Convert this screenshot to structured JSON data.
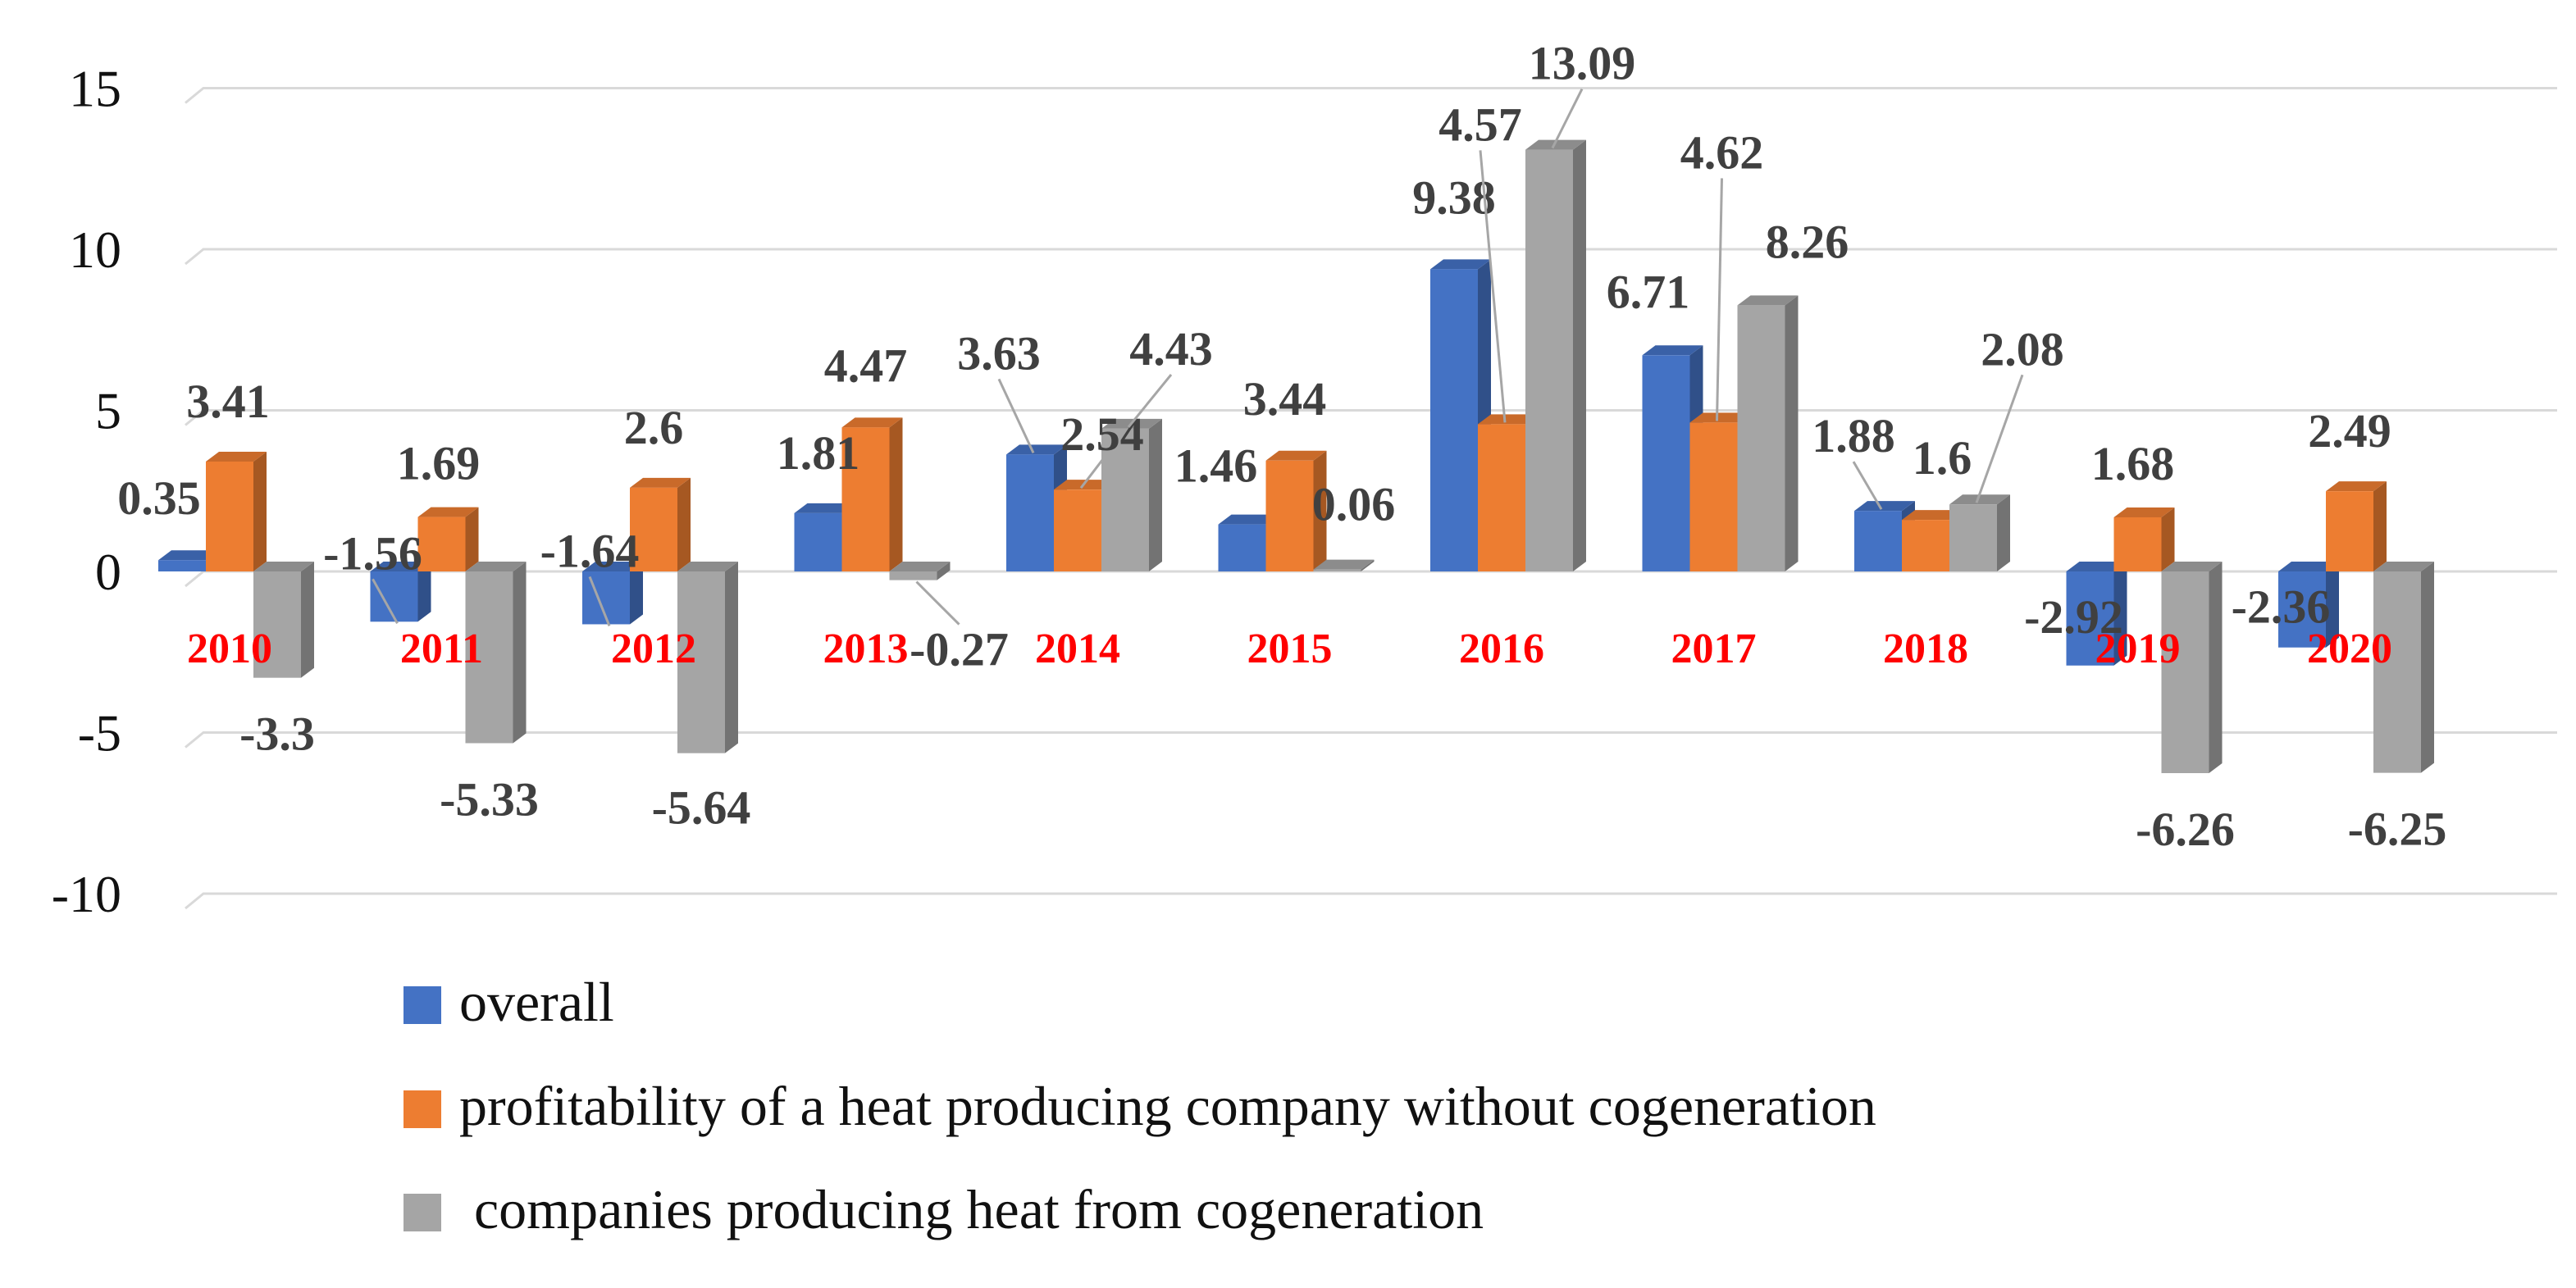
{
  "chart_data": {
    "type": "bar",
    "title": "",
    "xlabel": "",
    "ylabel": "",
    "ylim": [
      -10,
      15
    ],
    "yticks": [
      "15",
      "10",
      "5",
      "0",
      "-5",
      "-10"
    ],
    "grid": true,
    "legend_position": "bottom",
    "categories": [
      "2010",
      "2011",
      "2012",
      "2013",
      "2014",
      "2015",
      "2016",
      "2017",
      "2018",
      "2019",
      "2020"
    ],
    "category_label_color": "#ff0000",
    "series": [
      {
        "name": "overall",
        "color": "#4472c4",
        "values": [
          0.35,
          -1.56,
          -1.64,
          1.81,
          3.63,
          1.46,
          9.38,
          6.71,
          1.88,
          -2.92,
          -2.36
        ],
        "labels": [
          "0.35",
          "-1.56",
          "-1.64",
          "1.81",
          "3.63",
          "1.46",
          "9.38",
          "6.71",
          "1.88",
          "-2.92",
          "-2.36"
        ]
      },
      {
        "name": "profitability of a heat producing company without cogeneration",
        "color": "#ed7d31",
        "values": [
          3.41,
          1.69,
          2.6,
          4.47,
          2.54,
          3.44,
          4.57,
          4.62,
          1.6,
          1.68,
          2.49
        ],
        "labels": [
          "3.41",
          "1.69",
          "2.6",
          "4.47",
          "2.54",
          "3.44",
          "4.57",
          "4.62",
          "1.6",
          "1.68",
          "2.49"
        ]
      },
      {
        "name": "companies producing heat from cogeneration",
        "color": "#a5a5a5",
        "values": [
          -3.3,
          -5.33,
          -5.64,
          -0.27,
          4.43,
          0.06,
          13.09,
          8.26,
          2.08,
          -6.26,
          -6.25
        ],
        "labels": [
          "-3.3",
          "-5.33",
          "-5.64",
          "-0.27",
          "4.43",
          "0.06",
          "13.09",
          "8.26",
          "2.08",
          "-6.26",
          "-6.25"
        ]
      }
    ]
  }
}
